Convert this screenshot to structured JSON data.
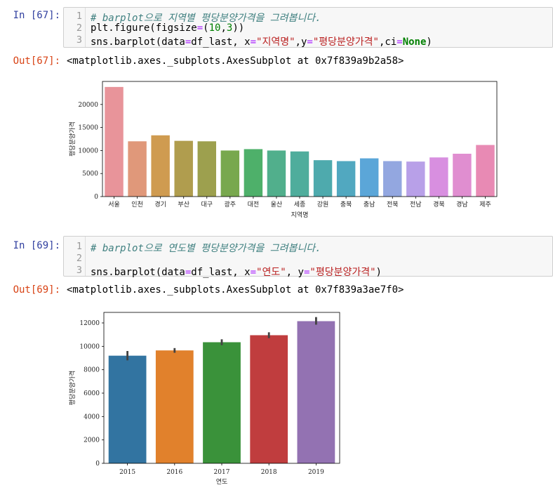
{
  "cells": [
    {
      "in_prompt": "In [67]:",
      "lines": [
        {
          "n": "1",
          "comment": "# barplot으로 지역별 평당분양가격을 그려봅니다."
        },
        {
          "n": "2",
          "code": "plt.figure(figsize=(10,3))"
        },
        {
          "n": "3",
          "code": "sns.barplot(data=df_last, x=\"지역명\",y=\"평당분양가격\",ci=None)"
        }
      ],
      "out_prompt": "Out[67]:",
      "out_text": "<matplotlib.axes._subplots.AxesSubplot at 0x7f839a9b2a58>"
    },
    {
      "in_prompt": "In [69]:",
      "lines": [
        {
          "n": "1",
          "comment": "# barplot으로 연도별 평당분양가격을 그려봅니다."
        },
        {
          "n": "2",
          "code": ""
        },
        {
          "n": "3",
          "code": "sns.barplot(data=df_last, x=\"연도\", y=\"평당분양가격\")"
        }
      ],
      "out_prompt": "Out[69]:",
      "out_text": "<matplotlib.axes._subplots.AxesSubplot at 0x7f839a3ae7f0>"
    }
  ],
  "chart_data": [
    {
      "type": "bar",
      "xlabel": "지역명",
      "ylabel": "평당분양가격",
      "ylim": [
        0,
        25000
      ],
      "yticks": [
        0,
        5000,
        10000,
        15000,
        20000
      ],
      "categories": [
        "서울",
        "인천",
        "경기",
        "부산",
        "대구",
        "광주",
        "대전",
        "울산",
        "세종",
        "강원",
        "충북",
        "충남",
        "전북",
        "전남",
        "경북",
        "경남",
        "제주"
      ],
      "values": [
        23800,
        12000,
        13300,
        12100,
        12000,
        10000,
        10300,
        10000,
        9800,
        7900,
        7700,
        8300,
        7700,
        7600,
        8500,
        9300,
        11200
      ],
      "colors": [
        "#e8949a",
        "#e0987a",
        "#cf9b50",
        "#b09d4e",
        "#9da04e",
        "#78a84e",
        "#4eb06a",
        "#51af8c",
        "#4fad9c",
        "#4eaaad",
        "#51a8c0",
        "#5ba6d8",
        "#93a7e0",
        "#b8a0e8",
        "#d88fe0",
        "#e08ed0",
        "#e88ab4"
      ],
      "grid": false,
      "legend": "none"
    },
    {
      "type": "bar",
      "xlabel": "연도",
      "ylabel": "평당분양가격",
      "ylim": [
        0,
        12900
      ],
      "yticks": [
        0,
        2000,
        4000,
        6000,
        8000,
        10000,
        12000
      ],
      "categories": [
        "2015",
        "2016",
        "2017",
        "2018",
        "2019"
      ],
      "values": [
        9200,
        9650,
        10350,
        10950,
        12150
      ],
      "error_low": [
        8800,
        9450,
        10100,
        10700,
        11850
      ],
      "error_high": [
        9600,
        9850,
        10600,
        11200,
        12500
      ],
      "colors": [
        "#3274a1",
        "#e1812c",
        "#3a923a",
        "#c03d3e",
        "#9372b2"
      ],
      "grid": false,
      "legend": "none"
    }
  ]
}
